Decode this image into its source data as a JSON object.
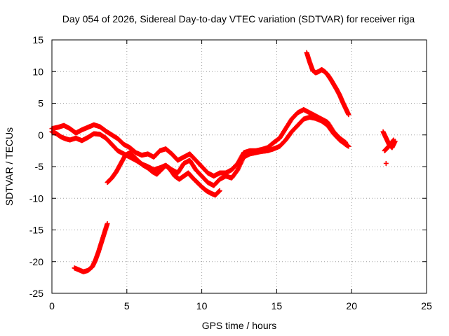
{
  "chart_data": {
    "type": "scatter",
    "title": "Day 054 of 2026, Sidereal Day-to-day VTEC variation (SDTVAR) for receiver riga",
    "xlabel": "GPS time / hours",
    "ylabel": "SDTVAR / TECUs",
    "xlim": [
      0,
      25
    ],
    "ylim": [
      -25,
      15
    ],
    "xticks": [
      0,
      5,
      10,
      15,
      20,
      25
    ],
    "yticks": [
      -25,
      -20,
      -15,
      -10,
      -5,
      0,
      5,
      10,
      15
    ],
    "grid": true,
    "marker_color": "#ff0000",
    "series": [
      {
        "name": "track-1",
        "x": [
          0,
          0.3,
          0.6,
          0.9,
          1.2,
          1.6,
          2.0,
          2.4,
          2.8,
          3.2,
          3.6,
          4.0,
          4.4,
          4.8,
          5.2,
          5.6,
          6.0,
          6.4,
          6.8,
          7.2,
          7.6,
          8.0,
          8.4,
          8.8,
          9.2,
          9.6,
          10.0,
          10.4,
          10.8,
          11.2,
          11.6,
          12.0,
          12.4,
          12.8,
          13.2,
          13.6,
          14.0,
          14.4,
          14.8,
          15.2,
          15.6,
          16.0,
          16.4,
          16.8,
          17.2,
          17.6,
          18.0,
          18.4,
          18.8,
          19.2,
          19.6,
          19.8
        ],
        "y": [
          0.5,
          0.2,
          -0.3,
          -0.6,
          -0.8,
          -0.5,
          -0.9,
          -0.4,
          0.2,
          0.1,
          -0.5,
          -1.5,
          -2.5,
          -3.0,
          -3.5,
          -4.0,
          -4.6,
          -5.0,
          -5.5,
          -5.2,
          -4.8,
          -5.5,
          -6.0,
          -4.5,
          -4.0,
          -5.5,
          -6.5,
          -7.5,
          -8.0,
          -7.0,
          -6.5,
          -6.8,
          -5.5,
          -3.5,
          -3.0,
          -2.8,
          -2.6,
          -2.5,
          -2.2,
          -1.8,
          -0.8,
          0.5,
          1.5,
          2.5,
          2.8,
          2.6,
          2.2,
          1.5,
          0.2,
          -0.8,
          -1.5,
          -1.8
        ]
      },
      {
        "name": "track-2",
        "x": [
          0,
          0.4,
          0.8,
          1.2,
          1.6,
          2.0,
          2.4,
          2.8,
          3.2,
          3.6,
          4.0,
          4.4,
          4.8,
          5.2,
          5.6,
          6.0,
          6.4,
          6.8,
          7.2,
          7.6,
          8.0,
          8.4,
          8.8,
          9.2,
          9.6,
          10.0,
          10.4,
          10.8,
          11.2,
          11.6,
          12.0,
          12.4,
          12.8,
          13.2,
          13.6,
          14.0,
          14.4,
          14.8,
          15.2,
          15.6,
          16.0,
          16.4,
          16.8,
          17.2,
          17.6,
          18.0,
          18.4,
          18.8,
          19.2,
          19.6
        ],
        "y": [
          1.0,
          1.2,
          1.5,
          1.0,
          0.3,
          0.8,
          1.2,
          1.6,
          1.3,
          0.6,
          0.0,
          -0.6,
          -1.5,
          -2.0,
          -2.8,
          -3.2,
          -3.0,
          -3.5,
          -2.5,
          -2.2,
          -3.0,
          -4.0,
          -3.5,
          -3.0,
          -4.0,
          -5.0,
          -6.0,
          -6.5,
          -6.0,
          -6.0,
          -5.5,
          -4.5,
          -2.8,
          -2.5,
          -2.5,
          -2.3,
          -2.0,
          -1.2,
          -0.5,
          1.0,
          2.5,
          3.5,
          4.0,
          3.5,
          3.0,
          2.5,
          2.0,
          0.5,
          -0.5,
          -1.2
        ]
      },
      {
        "name": "track-3",
        "x": [
          3.7,
          4.0,
          4.3,
          4.6,
          4.9,
          5.2,
          5.5,
          5.8,
          6.1,
          6.4,
          6.7,
          7.0,
          7.3,
          7.6,
          7.9,
          8.2,
          8.5,
          8.8,
          9.1,
          9.4,
          9.7,
          10.0,
          10.3,
          10.6,
          10.9,
          11.2
        ],
        "y": [
          -7.5,
          -6.8,
          -5.8,
          -4.5,
          -3.2,
          -2.8,
          -3.5,
          -4.2,
          -4.8,
          -5.2,
          -5.8,
          -6.2,
          -5.5,
          -4.8,
          -5.5,
          -6.5,
          -7.0,
          -6.5,
          -6.0,
          -6.8,
          -7.5,
          -8.2,
          -8.8,
          -9.2,
          -9.5,
          -8.8
        ]
      },
      {
        "name": "track-4",
        "x": [
          1.5,
          1.8,
          2.1,
          2.4,
          2.7,
          2.9,
          3.1,
          3.3,
          3.5,
          3.7
        ],
        "y": [
          -21.0,
          -21.3,
          -21.6,
          -21.4,
          -20.8,
          -19.8,
          -18.5,
          -17.0,
          -15.5,
          -14.0
        ]
      },
      {
        "name": "track-5",
        "x": [
          17.0,
          17.2,
          17.4,
          17.6,
          17.8,
          18.0,
          18.2,
          18.4,
          18.6,
          18.8,
          19.0,
          19.2,
          19.4,
          19.6,
          19.8
        ],
        "y": [
          13.0,
          11.5,
          10.2,
          9.8,
          10.0,
          10.3,
          10.0,
          9.5,
          8.8,
          8.0,
          7.2,
          6.3,
          5.2,
          4.2,
          3.2
        ]
      },
      {
        "name": "track-6",
        "x": [
          22.1,
          22.3,
          22.5,
          22.7,
          22.9
        ],
        "y": [
          0.5,
          -0.5,
          -1.5,
          -2.0,
          -1.0
        ]
      },
      {
        "name": "track-7",
        "x": [
          22.2,
          22.4,
          22.6,
          22.8
        ],
        "y": [
          -2.5,
          -2.0,
          -1.5,
          -0.8
        ]
      },
      {
        "name": "track-8",
        "x": [
          22.3
        ],
        "y": [
          -4.5
        ]
      }
    ]
  }
}
